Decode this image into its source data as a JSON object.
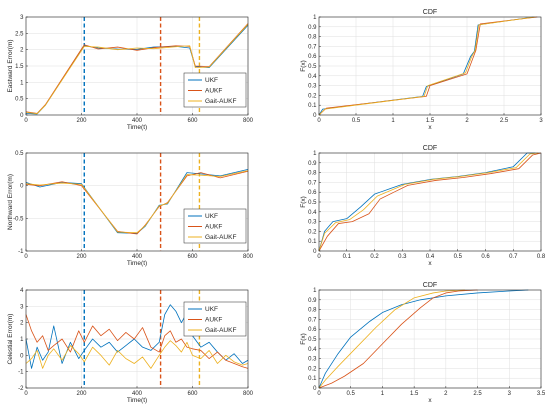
{
  "colors": {
    "UKF": "#0072BD",
    "AUKF": "#D95319",
    "Gait-AUKF": "#EDB120",
    "vline_blue": "#0072BD",
    "vline_red": "#D95319",
    "vline_yellow": "#EDB120"
  },
  "chart_data": [
    {
      "type": "line",
      "ylabel": "Eastward Error(m)",
      "xlabel": "Time(t)",
      "xlim": [
        0,
        800
      ],
      "ylim": [
        0,
        3
      ],
      "xticks": [
        0,
        200,
        400,
        600,
        800
      ],
      "yticks": [
        0,
        0.5,
        1,
        1.5,
        2,
        2.5,
        3
      ],
      "ytick_labels": [
        "0",
        "0.5",
        "1",
        "1.5",
        "2",
        "2.5",
        "3"
      ],
      "vlines": [
        210,
        485,
        625
      ],
      "legend": {
        "position": "bottom-right",
        "entries": [
          "UKF",
          "AUKF",
          "Gait-AUKF"
        ]
      },
      "series": [
        {
          "name": "UKF",
          "x": [
            0,
            40,
            70,
            210,
            260,
            330,
            400,
            460,
            540,
            590,
            610,
            660,
            800
          ],
          "values": [
            0.05,
            0.03,
            0.3,
            2.12,
            2.05,
            2.02,
            2.01,
            2.08,
            2.1,
            2.05,
            1.48,
            1.45,
            2.75
          ]
        },
        {
          "name": "AUKF",
          "x": [
            0,
            40,
            70,
            210,
            260,
            330,
            400,
            460,
            540,
            590,
            610,
            660,
            800
          ],
          "values": [
            0.1,
            0.05,
            0.32,
            2.15,
            2.02,
            2.08,
            1.98,
            2.06,
            2.12,
            2.1,
            1.5,
            1.48,
            2.8
          ]
        },
        {
          "name": "Gait-AUKF",
          "x": [
            0,
            40,
            70,
            210,
            260,
            330,
            400,
            460,
            540,
            590,
            610,
            660,
            800
          ],
          "values": [
            0.08,
            0.04,
            0.3,
            2.1,
            2.08,
            2.0,
            2.05,
            2.03,
            2.09,
            2.12,
            1.45,
            1.47,
            2.78
          ]
        }
      ]
    },
    {
      "type": "line",
      "title": "CDF",
      "ylabel": "F(x)",
      "xlabel": "x",
      "xlim": [
        0,
        3
      ],
      "ylim": [
        0,
        1
      ],
      "xticks": [
        0,
        0.5,
        1,
        1.5,
        2,
        2.5,
        3
      ],
      "xtick_labels": [
        "0",
        "0.5",
        "1",
        "1.5",
        "2",
        "2.5",
        "3"
      ],
      "yticks": [
        0,
        0.1,
        0.2,
        0.3,
        0.4,
        0.5,
        0.6,
        0.7,
        0.8,
        0.9,
        1
      ],
      "ytick_labels": [
        "0",
        "0.1",
        "0.2",
        "0.3",
        "0.4",
        "0.5",
        "0.6",
        "0.7",
        "0.8",
        "0.9",
        "1"
      ],
      "series": [
        {
          "name": "UKF",
          "x": [
            0,
            0.05,
            1.4,
            1.45,
            1.95,
            2.05,
            2.1,
            2.15,
            2.9
          ],
          "values": [
            0,
            0.06,
            0.19,
            0.29,
            0.42,
            0.6,
            0.65,
            0.92,
            1
          ]
        },
        {
          "name": "AUKF",
          "x": [
            0,
            0.1,
            1.45,
            1.5,
            2.0,
            2.08,
            2.12,
            2.18,
            2.95
          ],
          "values": [
            0,
            0.07,
            0.19,
            0.3,
            0.42,
            0.58,
            0.66,
            0.93,
            1
          ]
        },
        {
          "name": "Gait-AUKF",
          "x": [
            0,
            0.08,
            1.42,
            1.47,
            1.98,
            2.06,
            2.11,
            2.16,
            2.92
          ],
          "values": [
            0,
            0.06,
            0.19,
            0.3,
            0.43,
            0.59,
            0.66,
            0.92,
            1
          ]
        }
      ]
    },
    {
      "type": "line",
      "ylabel": "Northward Error(m)",
      "xlabel": "Time(t)",
      "xlim": [
        0,
        800
      ],
      "ylim": [
        -1,
        0.5
      ],
      "xticks": [
        0,
        200,
        400,
        600,
        800
      ],
      "yticks": [
        -1,
        -0.5,
        0,
        0.5
      ],
      "ytick_labels": [
        "-1",
        "-0.5",
        "0",
        "0.5"
      ],
      "vlines": [
        210,
        485,
        625
      ],
      "legend": {
        "position": "bottom-right",
        "entries": [
          "UKF",
          "AUKF",
          "Gait-AUKF"
        ]
      },
      "series": [
        {
          "name": "UKF",
          "x": [
            0,
            50,
            130,
            200,
            330,
            400,
            430,
            480,
            510,
            580,
            630,
            700,
            800
          ],
          "values": [
            0.05,
            -0.02,
            0.05,
            0.03,
            -0.72,
            -0.73,
            -0.62,
            -0.3,
            -0.28,
            0.2,
            0.18,
            0.15,
            0.25
          ]
        },
        {
          "name": "AUKF",
          "x": [
            0,
            50,
            130,
            200,
            330,
            400,
            430,
            480,
            510,
            580,
            630,
            700,
            800
          ],
          "values": [
            0.02,
            0.0,
            0.06,
            0.0,
            -0.7,
            -0.74,
            -0.6,
            -0.32,
            -0.26,
            0.15,
            0.2,
            0.12,
            0.22
          ]
        },
        {
          "name": "Gait-AUKF",
          "x": [
            0,
            50,
            130,
            200,
            330,
            400,
            430,
            480,
            510,
            580,
            630,
            700,
            800
          ],
          "values": [
            0.03,
            0.01,
            0.04,
            0.02,
            -0.71,
            -0.72,
            -0.61,
            -0.31,
            -0.27,
            0.17,
            0.16,
            0.14,
            0.23
          ]
        }
      ]
    },
    {
      "type": "line",
      "title": "CDF",
      "ylabel": "F(x)",
      "xlabel": "x",
      "xlim": [
        0,
        0.8
      ],
      "ylim": [
        0,
        1
      ],
      "xticks": [
        0,
        0.1,
        0.2,
        0.3,
        0.4,
        0.5,
        0.6,
        0.7,
        0.8
      ],
      "xtick_labels": [
        "0",
        "0.1",
        "0.2",
        "0.3",
        "0.4",
        "0.5",
        "0.6",
        "0.7",
        "0.8"
      ],
      "yticks": [
        0,
        0.1,
        0.2,
        0.3,
        0.4,
        0.5,
        0.6,
        0.7,
        0.8,
        0.9,
        1
      ],
      "ytick_labels": [
        "0",
        "0.1",
        "0.2",
        "0.3",
        "0.4",
        "0.5",
        "0.6",
        "0.7",
        "0.8",
        "0.9",
        "1"
      ],
      "series": [
        {
          "name": "UKF",
          "x": [
            0,
            0.02,
            0.05,
            0.1,
            0.15,
            0.2,
            0.25,
            0.3,
            0.4,
            0.5,
            0.6,
            0.7,
            0.75,
            0.78
          ],
          "values": [
            0,
            0.2,
            0.3,
            0.33,
            0.45,
            0.58,
            0.63,
            0.68,
            0.73,
            0.76,
            0.8,
            0.86,
            1,
            1
          ]
        },
        {
          "name": "AUKF",
          "x": [
            0,
            0.03,
            0.07,
            0.12,
            0.18,
            0.22,
            0.27,
            0.32,
            0.42,
            0.52,
            0.62,
            0.72,
            0.77,
            0.8
          ],
          "values": [
            0,
            0.15,
            0.28,
            0.3,
            0.38,
            0.53,
            0.6,
            0.67,
            0.72,
            0.75,
            0.79,
            0.84,
            0.98,
            1
          ]
        },
        {
          "name": "Gait-AUKF",
          "x": [
            0,
            0.02,
            0.06,
            0.11,
            0.16,
            0.21,
            0.26,
            0.31,
            0.41,
            0.51,
            0.61,
            0.71,
            0.76,
            0.79
          ],
          "values": [
            0,
            0.18,
            0.29,
            0.32,
            0.42,
            0.56,
            0.62,
            0.68,
            0.73,
            0.76,
            0.8,
            0.85,
            0.99,
            1
          ]
        }
      ]
    },
    {
      "type": "line",
      "ylabel": "Celestial Error(m)",
      "xlabel": "Time(t)",
      "xlim": [
        0,
        800
      ],
      "ylim": [
        -2,
        4
      ],
      "xticks": [
        0,
        200,
        400,
        600,
        800
      ],
      "yticks": [
        -2,
        -1,
        0,
        1,
        2,
        3,
        4
      ],
      "ytick_labels": [
        "-2",
        "-1",
        "0",
        "1",
        "2",
        "3",
        "4"
      ],
      "vlines": [
        210,
        485,
        625
      ],
      "legend": {
        "position": "top-right",
        "entries": [
          "UKF",
          "AUKF",
          "Gait-AUKF"
        ]
      },
      "series": [
        {
          "name": "UKF",
          "x": [
            0,
            20,
            40,
            60,
            80,
            100,
            130,
            160,
            190,
            210,
            240,
            270,
            300,
            330,
            360,
            390,
            420,
            450,
            480,
            500,
            520,
            540,
            560,
            580,
            600,
            630,
            660,
            690,
            720,
            750,
            780,
            800
          ],
          "values": [
            1.0,
            -0.8,
            0.5,
            -0.3,
            0.2,
            1.8,
            -0.5,
            0.8,
            -0.2,
            0.3,
            1.0,
            0.5,
            0.8,
            0.2,
            0.6,
            1.0,
            0.5,
            0.3,
            0.8,
            2.5,
            3.1,
            2.7,
            2.0,
            2.6,
            1.2,
            0.5,
            0.8,
            0.2,
            -0.3,
            0.1,
            -0.5,
            -0.3
          ]
        },
        {
          "name": "AUKF",
          "x": [
            0,
            20,
            40,
            60,
            80,
            100,
            130,
            160,
            190,
            210,
            240,
            270,
            300,
            330,
            360,
            390,
            420,
            450,
            480,
            500,
            520,
            540,
            560,
            580,
            600,
            630,
            660,
            690,
            720,
            750,
            780,
            800
          ],
          "values": [
            2.5,
            1.5,
            0.8,
            1.2,
            0.3,
            0.6,
            1.0,
            0.2,
            1.5,
            0.8,
            1.8,
            1.2,
            1.6,
            0.9,
            1.4,
            1.0,
            1.7,
            0.5,
            0.2,
            1.2,
            1.5,
            0.8,
            1.0,
            0.5,
            0.4,
            0.3,
            -0.2,
            0.2,
            -0.3,
            -0.5,
            -0.7,
            -0.8
          ]
        },
        {
          "name": "Gait-AUKF",
          "x": [
            0,
            20,
            40,
            60,
            80,
            100,
            130,
            160,
            190,
            210,
            240,
            270,
            300,
            330,
            360,
            390,
            420,
            450,
            480,
            500,
            520,
            540,
            560,
            580,
            600,
            630,
            660,
            690,
            720,
            750,
            780,
            800
          ],
          "values": [
            -0.5,
            -0.2,
            0.3,
            -0.8,
            0.0,
            0.4,
            -0.3,
            0.6,
            0.1,
            -0.4,
            0.5,
            0.0,
            -0.6,
            0.3,
            -0.2,
            -0.5,
            -0.1,
            -0.8,
            0.0,
            0.5,
            0.9,
            0.6,
            0.2,
            0.8,
            0.0,
            -0.2,
            0.3,
            -0.5,
            0.0,
            -0.4,
            -0.6,
            -0.5
          ]
        }
      ]
    },
    {
      "type": "line",
      "title": "CDF",
      "ylabel": "F(x)",
      "xlabel": "x",
      "xlim": [
        0,
        3.5
      ],
      "ylim": [
        0,
        1
      ],
      "xticks": [
        0,
        0.5,
        1,
        1.5,
        2,
        2.5,
        3,
        3.5
      ],
      "xtick_labels": [
        "0",
        "0.5",
        "1",
        "1.5",
        "2",
        "2.5",
        "3",
        "3.5"
      ],
      "yticks": [
        0,
        0.1,
        0.2,
        0.3,
        0.4,
        0.5,
        0.6,
        0.7,
        0.8,
        0.9,
        1
      ],
      "ytick_labels": [
        "0",
        "0.1",
        "0.2",
        "0.3",
        "0.4",
        "0.5",
        "0.6",
        "0.7",
        "0.8",
        "0.9",
        "1"
      ],
      "series": [
        {
          "name": "UKF",
          "x": [
            0,
            0.1,
            0.3,
            0.5,
            0.8,
            1.0,
            1.3,
            1.6,
            2.0,
            2.5,
            3.0,
            3.3
          ],
          "values": [
            0,
            0.15,
            0.35,
            0.52,
            0.68,
            0.77,
            0.85,
            0.9,
            0.94,
            0.97,
            0.99,
            1
          ]
        },
        {
          "name": "AUKF",
          "x": [
            0,
            0.2,
            0.4,
            0.7,
            1.0,
            1.3,
            1.6,
            1.8,
            2.0,
            2.2,
            2.5
          ],
          "values": [
            0,
            0.05,
            0.12,
            0.25,
            0.45,
            0.65,
            0.82,
            0.92,
            0.97,
            0.99,
            1
          ]
        },
        {
          "name": "Gait-AUKF",
          "x": [
            0,
            0.1,
            0.3,
            0.6,
            0.9,
            1.2,
            1.5,
            1.8,
            2.0,
            2.3
          ],
          "values": [
            0,
            0.08,
            0.22,
            0.42,
            0.62,
            0.8,
            0.92,
            0.97,
            0.99,
            1
          ]
        }
      ]
    }
  ]
}
